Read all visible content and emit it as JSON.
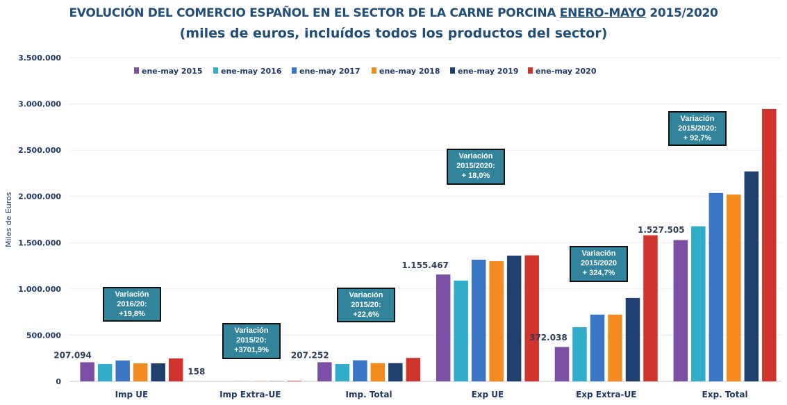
{
  "title": {
    "line1_prefix": "EVOLUCIÓN DEL COMERCIO ESPAÑOL EN EL SECTOR DE LA CARNE PORCINA ",
    "line1_underlined": "ENERO-MAYO",
    "line1_suffix": " 2015/2020",
    "line2": "(miles de euros, incluídos todos los productos del sector)"
  },
  "chart_data": {
    "type": "bar",
    "title": "EVOLUCIÓN DEL COMERCIO ESPAÑOL EN EL SECTOR DE LA CARNE PORCINA ENERO-MAYO 2015/2020 (miles de euros, incluídos todos los productos del sector)",
    "xlabel": "",
    "ylabel": "Miles de Euros",
    "ylim": [
      0,
      3500000
    ],
    "yticks": [
      0,
      500000,
      1000000,
      1500000,
      2000000,
      2500000,
      3000000,
      3500000
    ],
    "ytick_labels": [
      "0",
      "500.000",
      "1.000.000",
      "1.500.000",
      "2.000.000",
      "2.500.000",
      "3.000.000",
      "3.500.000"
    ],
    "grid": true,
    "legend_position": "top",
    "categories": [
      "Imp UE",
      "Imp Extra-UE",
      "Imp. Total",
      "Exp UE",
      "Exp Extra-UE",
      "Exp. Total"
    ],
    "series": [
      {
        "name": "ene-may 2015",
        "color": "#7b4fa3",
        "values": [
          207094,
          158,
          207252,
          1155467,
          372038,
          1527505
        ]
      },
      {
        "name": "ene-may 2016",
        "color": "#31acc9",
        "values": [
          188000,
          500,
          188000,
          1090000,
          586000,
          1677000
        ]
      },
      {
        "name": "ene-may 2017",
        "color": "#3a76c4",
        "values": [
          226000,
          1000,
          228000,
          1316000,
          722000,
          2037000
        ]
      },
      {
        "name": "ene-may 2018",
        "color": "#f28a1e",
        "values": [
          195000,
          1500,
          197000,
          1300000,
          722000,
          2020000
        ]
      },
      {
        "name": "ene-may 2019",
        "color": "#1f3f6e",
        "values": [
          195000,
          2000,
          197000,
          1360000,
          902000,
          2270000
        ]
      },
      {
        "name": "ene-may 2020",
        "color": "#d0342c",
        "values": [
          248000,
          6007,
          254000,
          1363000,
          1580000,
          2945000
        ]
      }
    ],
    "data_labels": [
      {
        "category": "Imp UE",
        "series": "ene-may 2015",
        "text": "207.094"
      },
      {
        "category": "Imp Extra-UE",
        "series": "ene-may 2015",
        "text": "158"
      },
      {
        "category": "Imp. Total",
        "series": "ene-may 2015",
        "text": "207.252"
      },
      {
        "category": "Exp UE",
        "series": "ene-may 2015",
        "text": "1.155.467"
      },
      {
        "category": "Exp Extra-UE",
        "series": "ene-may 2015",
        "text": "372.038"
      },
      {
        "category": "Exp. Total",
        "series": "ene-may 2015",
        "text": "1.527.505"
      }
    ],
    "annotations": [
      {
        "category": "Imp UE",
        "lines": [
          "Variación",
          "2016/20:",
          "+19,8%"
        ]
      },
      {
        "category": "Imp Extra-UE",
        "lines": [
          "Variación",
          "2015/20:",
          "+3701,9%"
        ]
      },
      {
        "category": "Imp. Total",
        "lines": [
          "Variación",
          "2015/20:",
          "+22,6%"
        ]
      },
      {
        "category": "Exp UE",
        "lines": [
          "Variación",
          "2015/2020:",
          "+ 18,0%"
        ]
      },
      {
        "category": "Exp Extra-UE",
        "lines": [
          "Variación",
          "2015/2020",
          "+ 324,7%"
        ]
      },
      {
        "category": "Exp. Total",
        "lines": [
          "Variación",
          "2015/2020:",
          "+ 92,7%"
        ]
      }
    ]
  }
}
